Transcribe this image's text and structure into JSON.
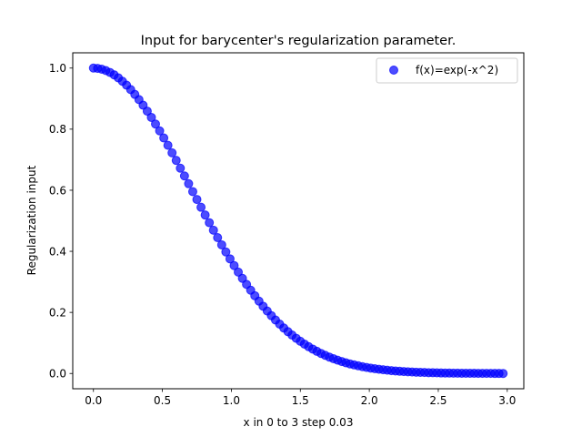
{
  "chart_data": {
    "type": "scatter",
    "title": "Input for barycenter's regularization parameter.",
    "xlabel": "x in 0 to 3 step 0.03",
    "ylabel": "Regularization input",
    "xlim": [
      -0.15,
      3.12
    ],
    "ylim": [
      -0.05,
      1.05
    ],
    "xticks": [
      0.0,
      0.5,
      1.0,
      1.5,
      2.0,
      2.5,
      3.0
    ],
    "xtick_labels": [
      "0.0",
      "0.5",
      "1.0",
      "1.5",
      "2.0",
      "2.5",
      "3.0"
    ],
    "yticks": [
      0.0,
      0.2,
      0.4,
      0.6,
      0.8,
      1.0
    ],
    "ytick_labels": [
      "0.0",
      "0.2",
      "0.4",
      "0.6",
      "0.8",
      "1.0"
    ],
    "grid": false,
    "legend_position": "top-right",
    "series": [
      {
        "name": "f(x)=exp(-x^2)",
        "color": "#0000ff",
        "alpha": 0.7,
        "x": [
          0.0,
          0.03,
          0.06,
          0.09,
          0.12,
          0.15,
          0.18,
          0.21,
          0.24,
          0.27,
          0.3,
          0.33,
          0.36,
          0.39,
          0.42,
          0.45,
          0.48,
          0.51,
          0.54,
          0.57,
          0.6,
          0.63,
          0.66,
          0.69,
          0.72,
          0.75,
          0.78,
          0.81,
          0.84,
          0.87,
          0.9,
          0.93,
          0.96,
          0.99,
          1.02,
          1.05,
          1.08,
          1.11,
          1.14,
          1.17,
          1.2,
          1.23,
          1.26,
          1.29,
          1.32,
          1.35,
          1.38,
          1.41,
          1.44,
          1.47,
          1.5,
          1.53,
          1.56,
          1.59,
          1.62,
          1.65,
          1.68,
          1.71,
          1.74,
          1.77,
          1.8,
          1.83,
          1.86,
          1.89,
          1.92,
          1.95,
          1.98,
          2.01,
          2.04,
          2.07,
          2.1,
          2.13,
          2.16,
          2.19,
          2.22,
          2.25,
          2.28,
          2.31,
          2.34,
          2.37,
          2.4,
          2.43,
          2.46,
          2.49,
          2.52,
          2.55,
          2.58,
          2.61,
          2.64,
          2.67,
          2.7,
          2.73,
          2.76,
          2.79,
          2.82,
          2.85,
          2.88,
          2.91,
          2.94,
          2.97
        ],
        "y": [
          1.0,
          0.9991,
          0.9964,
          0.9919,
          0.9857,
          0.9778,
          0.9681,
          0.9569,
          0.944,
          0.9296,
          0.9139,
          0.8968,
          0.8785,
          0.859,
          0.8385,
          0.8167,
          0.7944,
          0.7711,
          0.7471,
          0.7225,
          0.6977,
          0.6721,
          0.6468,
          0.6213,
          0.5955,
          0.5698,
          0.5442,
          0.5189,
          0.4938,
          0.4692,
          0.4449,
          0.4211,
          0.3979,
          0.3753,
          0.3533,
          0.332,
          0.3114,
          0.2917,
          0.2727,
          0.2546,
          0.2369,
          0.2203,
          0.2045,
          0.1894,
          0.175,
          0.1616,
          0.1489,
          0.1369,
          0.1257,
          0.1152,
          0.1054,
          0.0962,
          0.0877,
          0.0798,
          0.0725,
          0.0657,
          0.0595,
          0.0537,
          0.0485,
          0.0436,
          0.0392,
          0.0351,
          0.0314,
          0.0281,
          0.0251,
          0.0223,
          0.0198,
          0.0176,
          0.0156,
          0.0138,
          0.0122,
          0.0107,
          0.0094,
          0.0082,
          0.0072,
          0.0063,
          0.0055,
          0.0048,
          0.0042,
          0.0036,
          0.0032,
          0.0027,
          0.0024,
          0.002,
          0.0017,
          0.0015,
          0.0013,
          0.0011,
          0.0009,
          0.0008,
          0.0007,
          0.0006,
          0.0005,
          0.0004,
          0.0004,
          0.0003,
          0.0003,
          0.0002,
          0.0002,
          0.0001
        ]
      }
    ]
  }
}
